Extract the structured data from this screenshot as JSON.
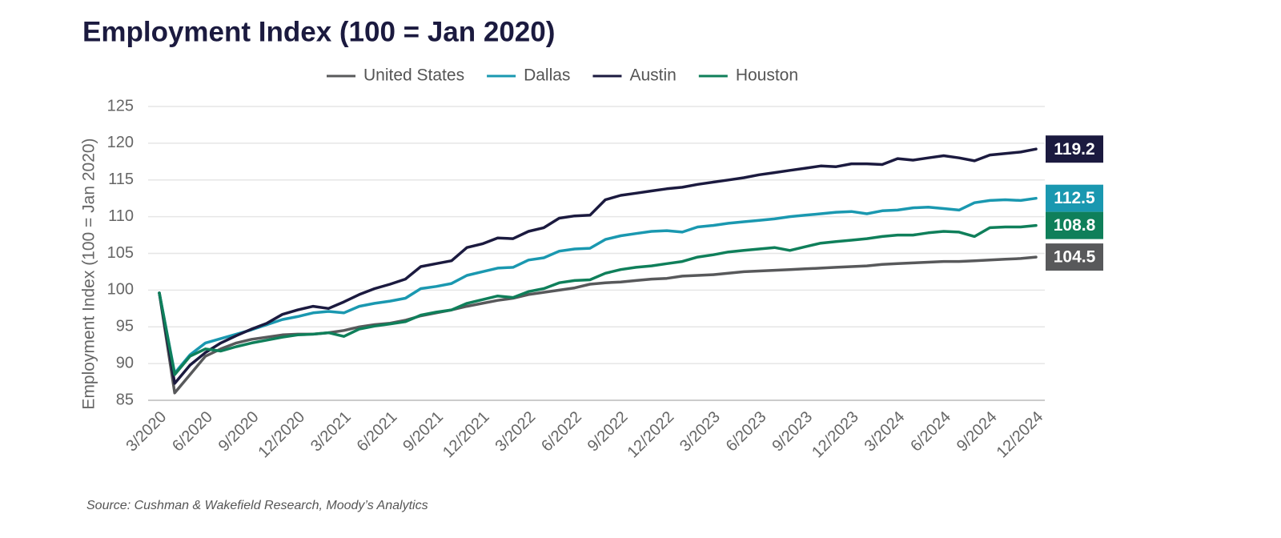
{
  "chart_data": {
    "type": "line",
    "title": "Employment Index (100 = Jan 2020)",
    "y_label": "Employment Index (100 = Jan 2020)",
    "source": "Source: Cushman & Wakefield Research, Moody’s Analytics",
    "categories": [
      "3/2020",
      null,
      null,
      "6/2020",
      null,
      null,
      "9/2020",
      null,
      null,
      "12/2020",
      null,
      null,
      "3/2021",
      null,
      null,
      "6/2021",
      null,
      null,
      "9/2021",
      null,
      null,
      "12/2021",
      null,
      null,
      "3/2022",
      null,
      null,
      "6/2022",
      null,
      null,
      "9/2022",
      null,
      null,
      "12/2022",
      null,
      null,
      "3/2023",
      null,
      null,
      "6/2023",
      null,
      null,
      "9/2023",
      null,
      null,
      "12/2023",
      null,
      null,
      "3/2024",
      null,
      null,
      "6/2024",
      null,
      null,
      "9/2024",
      null,
      null,
      "12/2024"
    ],
    "ylim": [
      85,
      125
    ],
    "yticks": [
      85,
      90,
      95,
      100,
      105,
      110,
      115,
      120,
      125
    ],
    "grid": true,
    "legend": "top",
    "series": [
      {
        "name": "United States",
        "color": "#58595b",
        "values": [
          99.6,
          86.0,
          88.5,
          91.0,
          92.0,
          92.8,
          93.3,
          93.6,
          93.9,
          94.0,
          94.0,
          94.2,
          94.5,
          95.0,
          95.3,
          95.5,
          95.9,
          96.5,
          96.9,
          97.3,
          97.8,
          98.2,
          98.6,
          98.9,
          99.4,
          99.7,
          100.0,
          100.3,
          100.8,
          101.0,
          101.1,
          101.3,
          101.5,
          101.6,
          101.9,
          102.0,
          102.1,
          102.3,
          102.5,
          102.6,
          102.7,
          102.8,
          102.9,
          103.0,
          103.1,
          103.2,
          103.3,
          103.5,
          103.6,
          103.7,
          103.8,
          103.9,
          103.9,
          104.0,
          104.1,
          104.2,
          104.3,
          104.5
        ]
      },
      {
        "name": "Dallas",
        "color": "#1a98b0",
        "values": [
          99.6,
          88.7,
          91.2,
          92.8,
          93.4,
          94.0,
          94.6,
          95.3,
          96.0,
          96.4,
          96.9,
          97.1,
          96.9,
          97.8,
          98.2,
          98.5,
          98.9,
          100.2,
          100.5,
          100.9,
          102.0,
          102.5,
          103.0,
          103.1,
          104.1,
          104.4,
          105.3,
          105.6,
          105.7,
          106.9,
          107.4,
          107.7,
          108.0,
          108.1,
          107.9,
          108.6,
          108.8,
          109.1,
          109.3,
          109.5,
          109.7,
          110.0,
          110.2,
          110.4,
          110.6,
          110.7,
          110.4,
          110.8,
          110.9,
          111.2,
          111.3,
          111.1,
          110.9,
          111.9,
          112.2,
          112.3,
          112.2,
          112.5
        ]
      },
      {
        "name": "Austin",
        "color": "#1b1a3f",
        "values": [
          99.6,
          87.3,
          89.8,
          91.5,
          92.8,
          93.8,
          94.7,
          95.5,
          96.7,
          97.3,
          97.8,
          97.5,
          98.4,
          99.4,
          100.2,
          100.8,
          101.5,
          103.2,
          103.6,
          104.0,
          105.8,
          106.3,
          107.1,
          107.0,
          108.0,
          108.5,
          109.8,
          110.1,
          110.2,
          112.3,
          112.9,
          113.2,
          113.5,
          113.8,
          114.0,
          114.4,
          114.7,
          115.0,
          115.3,
          115.7,
          116.0,
          116.3,
          116.6,
          116.9,
          116.8,
          117.2,
          117.2,
          117.1,
          117.9,
          117.7,
          118.0,
          118.3,
          118.0,
          117.6,
          118.4,
          118.6,
          118.8,
          119.2
        ]
      },
      {
        "name": "Houston",
        "color": "#0f7f5a",
        "values": [
          99.6,
          88.5,
          91.0,
          92.0,
          91.7,
          92.3,
          92.8,
          93.2,
          93.6,
          93.9,
          94.0,
          94.2,
          93.7,
          94.7,
          95.1,
          95.4,
          95.7,
          96.6,
          97.0,
          97.3,
          98.2,
          98.7,
          99.2,
          99.0,
          99.8,
          100.2,
          101.0,
          101.3,
          101.4,
          102.3,
          102.8,
          103.1,
          103.3,
          103.6,
          103.9,
          104.5,
          104.8,
          105.2,
          105.4,
          105.6,
          105.8,
          105.4,
          105.9,
          106.4,
          106.6,
          106.8,
          107.0,
          107.3,
          107.5,
          107.5,
          107.8,
          108.0,
          107.9,
          107.3,
          108.5,
          108.6,
          108.6,
          108.8
        ]
      }
    ]
  }
}
